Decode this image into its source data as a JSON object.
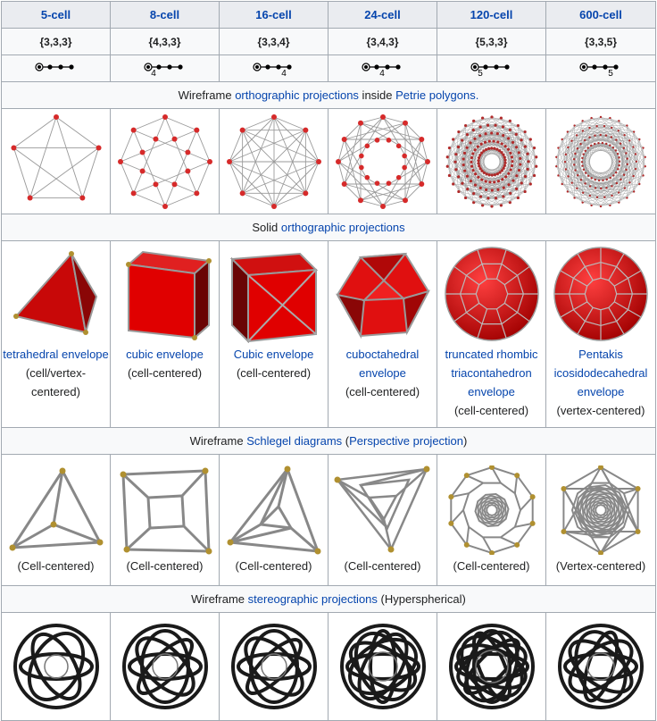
{
  "columns": [
    {
      "name": "5-cell",
      "schlafli": "{3,3,3}",
      "cox_sub": ""
    },
    {
      "name": "8-cell",
      "schlafli": "{4,3,3}",
      "cox_sub": "4"
    },
    {
      "name": "16-cell",
      "schlafli": "{3,3,4}",
      "cox_sub": "4"
    },
    {
      "name": "24-cell",
      "schlafli": "{3,4,3}",
      "cox_sub": "4"
    },
    {
      "name": "120-cell",
      "schlafli": "{5,3,3}",
      "cox_sub": "5"
    },
    {
      "name": "600-cell",
      "schlafli": "{3,3,5}",
      "cox_sub": "5"
    }
  ],
  "sections": {
    "wireframe_ortho": {
      "prefix": "Wireframe ",
      "link1": "orthographic projections",
      "mid": " inside ",
      "link2": "Petrie polygons.",
      "suffix": ""
    },
    "solid_ortho": {
      "prefix": "Solid ",
      "link1": "orthographic projections"
    },
    "schlegel": {
      "prefix": "Wireframe ",
      "link1": "Schlegel diagrams",
      "mid": " (",
      "link2": "Perspective projection",
      "suffix": ")"
    },
    "stereo": {
      "prefix": "Wireframe ",
      "link1": "stereographic projections",
      "suffix": " (Hyperspherical)"
    }
  },
  "solid_captions": [
    {
      "link": "tetrahedral envelope",
      "text": "(cell/vertex-centered)"
    },
    {
      "link": "cubic envelope",
      "text": "(cell-centered)"
    },
    {
      "link": "Cubic envelope",
      "text": "(cell-centered)"
    },
    {
      "link": "cuboctahedral envelope",
      "text": "(cell-centered)"
    },
    {
      "link": "truncated rhombic triacontahedron envelope",
      "text": "(cell-centered)"
    },
    {
      "link": "Pentakis icosidodecahedral envelope",
      "text": "(vertex-centered)"
    }
  ],
  "schlegel_captions": [
    "(Cell-centered)",
    "(Cell-centered)",
    "(Cell-centered)",
    "(Cell-centered)",
    "(Cell-centered)",
    "(Vertex-centered)"
  ],
  "colors": {
    "link": "#0645ad",
    "vertex": "#d62a2a",
    "solid": "#e01010",
    "edge": "#a0a0a0"
  }
}
